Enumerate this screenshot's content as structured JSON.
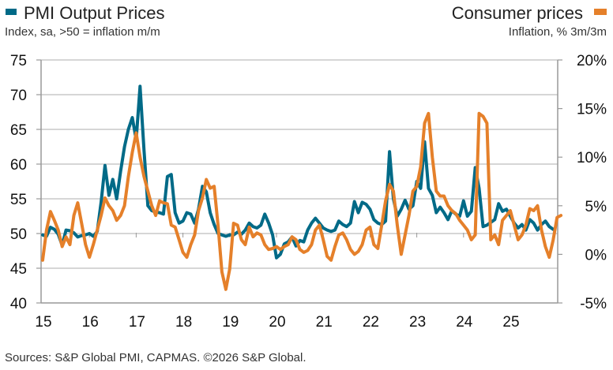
{
  "legend": {
    "left": {
      "title": "PMI Output Prices",
      "subtitle": "Index, sa, >50 = inflation m/m",
      "color": "#006a87"
    },
    "right": {
      "title": "Consumer prices",
      "subtitle": "Inflation, % 3m/3m",
      "color": "#e5802a"
    }
  },
  "source": "Sources: S&P Global PMI, CAPMAS. ©2026 S&P Global.",
  "chart_data": {
    "type": "line",
    "title": "",
    "x_start": "2015-01",
    "frequency": "monthly",
    "x_tick_labels": [
      "15",
      "16",
      "17",
      "18",
      "19",
      "20",
      "21",
      "22",
      "23",
      "24",
      "25"
    ],
    "y_left": {
      "label": "PMI Output Prices (Index, sa, >50 = inflation m/m)",
      "range": [
        40,
        75
      ],
      "ticks": [
        40,
        45,
        50,
        55,
        60,
        65,
        70,
        75
      ],
      "tick_labels": [
        "40",
        "45",
        "50",
        "55",
        "60",
        "65",
        "70",
        "75"
      ]
    },
    "y_right": {
      "label": "Consumer prices (Inflation, % 3m/3m)",
      "range": [
        -5,
        20
      ],
      "ticks": [
        -5,
        0,
        5,
        10,
        15,
        20
      ],
      "tick_labels": [
        "-5%",
        "0%",
        "5%",
        "10%",
        "15%",
        "20%"
      ]
    },
    "grid": true,
    "series": [
      {
        "name": "PMI Output Prices",
        "axis": "left",
        "color": "#006a87",
        "values": [
          49.8,
          49.6,
          50.9,
          50.6,
          49.9,
          48.3,
          50.5,
          50.4,
          50.1,
          49.5,
          49.7,
          49.8,
          50.0,
          49.6,
          50.3,
          54.5,
          59.8,
          55.5,
          57.8,
          55.0,
          59.0,
          62.5,
          65.0,
          66.7,
          63.5,
          71.2,
          62.0,
          54.0,
          53.3,
          53.1,
          53.0,
          52.8,
          58.2,
          58.5,
          53.0,
          51.5,
          51.8,
          53.0,
          52.8,
          51.5,
          53.5,
          56.8,
          56.0,
          53.0,
          51.3,
          50.0,
          49.8,
          49.6,
          49.8,
          49.8,
          50.2,
          49.9,
          50.5,
          51.5,
          51.0,
          50.8,
          51.2,
          52.8,
          51.5,
          49.8,
          46.5,
          47.0,
          48.5,
          48.8,
          49.5,
          48.2,
          49.0,
          48.8,
          50.5,
          51.5,
          52.2,
          51.5,
          50.8,
          50.5,
          50.3,
          50.5,
          51.8,
          51.3,
          51.0,
          51.5,
          54.6,
          53.0,
          54.5,
          54.2,
          53.5,
          52.0,
          51.5,
          51.3,
          51.8,
          61.8,
          55.0,
          52.5,
          53.5,
          54.8,
          53.5,
          54.0,
          57.5,
          56.5,
          63.2,
          56.5,
          55.5,
          53.0,
          53.8,
          53.0,
          52.0,
          53.3,
          52.8,
          52.5,
          54.7,
          52.5,
          53.2,
          59.5,
          56.5,
          51.0,
          51.2,
          51.6,
          52.0,
          54.3,
          53.2,
          53.5,
          52.5,
          51.5,
          50.8,
          51.3,
          50.5,
          52.0,
          51.5,
          50.5,
          51.3,
          51.8,
          51.0,
          50.6
        ]
      },
      {
        "name": "Consumer prices",
        "axis": "right",
        "color": "#e5802a",
        "values": [
          -0.6,
          2.5,
          4.4,
          3.5,
          2.5,
          0.8,
          1.8,
          1.0,
          4.0,
          5.3,
          3.2,
          1.0,
          -0.3,
          1.0,
          2.5,
          4.0,
          5.8,
          5.0,
          4.5,
          3.5,
          4.0,
          5.0,
          8.0,
          10.5,
          12.5,
          10.0,
          8.0,
          6.5,
          5.0,
          4.0,
          5.5,
          5.3,
          5.2,
          3.0,
          2.8,
          1.5,
          0.2,
          -0.3,
          1.0,
          2.0,
          4.5,
          5.8,
          7.7,
          6.8,
          7.0,
          3.0,
          -1.8,
          -3.6,
          -1.5,
          3.2,
          3.0,
          1.5,
          1.0,
          2.8,
          1.8,
          2.2,
          2.0,
          1.0,
          0.5,
          0.6,
          0.8,
          0.5,
          0.8,
          1.0,
          1.8,
          1.5,
          0.5,
          0.2,
          0.4,
          1.0,
          2.5,
          3.0,
          1.5,
          -0.2,
          -0.6,
          0.8,
          2.0,
          2.2,
          1.5,
          0.5,
          0.0,
          0.3,
          1.0,
          2.5,
          2.8,
          1.0,
          0.6,
          3.0,
          5.5,
          7.2,
          6.5,
          3.0,
          0.0,
          2.0,
          4.0,
          6.5,
          7.0,
          9.0,
          13.5,
          14.5,
          10.0,
          6.5,
          6.0,
          6.0,
          5.0,
          4.5,
          4.2,
          3.5,
          3.0,
          2.5,
          1.5,
          2.0,
          14.5,
          14.2,
          13.5,
          1.5,
          2.0,
          1.0,
          3.5,
          4.0,
          4.5,
          3.0,
          1.5,
          2.0,
          3.0,
          4.7,
          4.5,
          5.0,
          2.5,
          0.8,
          -0.3,
          1.5,
          3.8,
          4.0
        ]
      }
    ]
  }
}
